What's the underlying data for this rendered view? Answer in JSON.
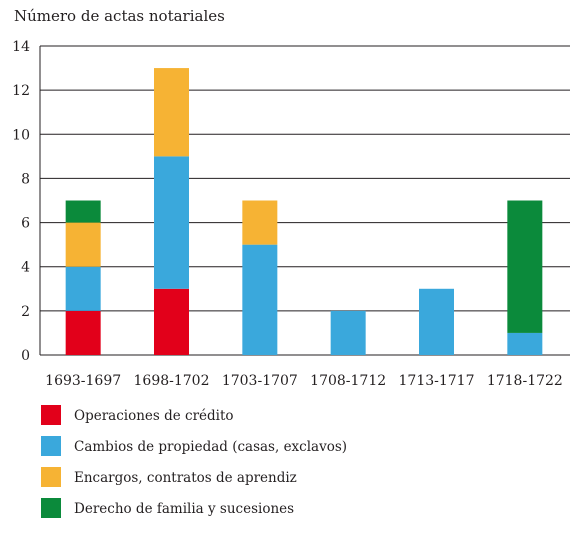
{
  "chart_data": {
    "type": "bar",
    "stacked": true,
    "title": "Número de actas notariales",
    "xlabel": "",
    "ylabel": "",
    "ylim": [
      0,
      14
    ],
    "yticks": [
      0,
      2,
      4,
      6,
      8,
      10,
      12,
      14
    ],
    "grid": "horizontal",
    "legend_position": "bottom",
    "categories": [
      "1693-1697",
      "1698-1702",
      "1703-1707",
      "1708-1712",
      "1713-1717",
      "1718-1722"
    ],
    "series": [
      {
        "name": "Operaciones de crédito",
        "color": "#e2001a",
        "values": [
          2,
          3,
          0,
          0,
          0,
          0
        ]
      },
      {
        "name": "Cambios de propiedad (casas, exclavos)",
        "color": "#3aa8dc",
        "values": [
          2,
          6,
          5,
          2,
          3,
          1
        ]
      },
      {
        "name": "Encargos, contratos de aprendiz",
        "color": "#f6b334",
        "values": [
          2,
          4,
          2,
          0,
          0,
          0
        ]
      },
      {
        "name": "Derecho de familia y sucesiones",
        "color": "#0b8a3b",
        "values": [
          1,
          0,
          0,
          0,
          0,
          6
        ]
      }
    ]
  }
}
